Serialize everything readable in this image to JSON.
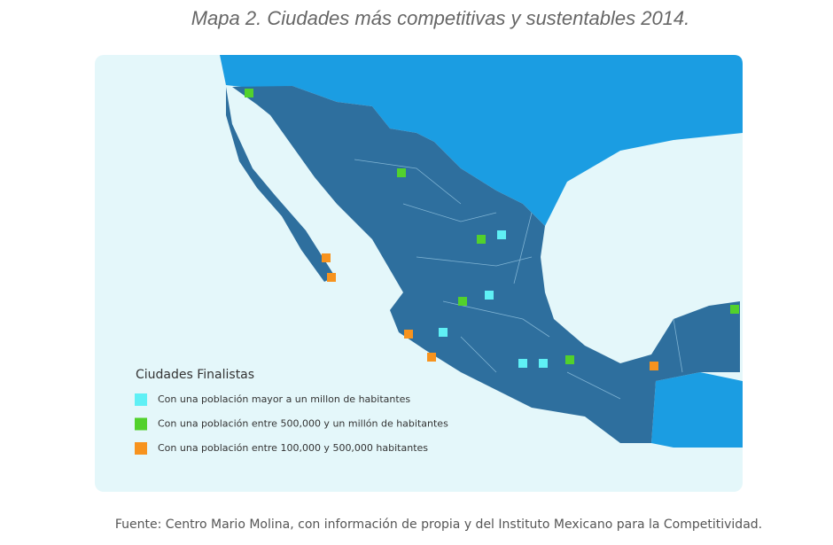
{
  "title": "Mapa 2. Ciudades más competitivas y sustentables 2014.",
  "legend": {
    "title": "Ciudades Finalistas",
    "items": [
      {
        "label": "Con una población mayor a un millon de habitantes",
        "color": "#5ff0f5"
      },
      {
        "label": "Con una población entre 500,000 y un millón de habitantes",
        "color": "#52d12c"
      },
      {
        "label": "Con una población entre 100,000 y 500,000 habitantes",
        "color": "#f7931e"
      }
    ]
  },
  "source": "Fuente: Centro Mario Molina, con información de propia y del Instituto Mexicano para la Competitividad."
}
